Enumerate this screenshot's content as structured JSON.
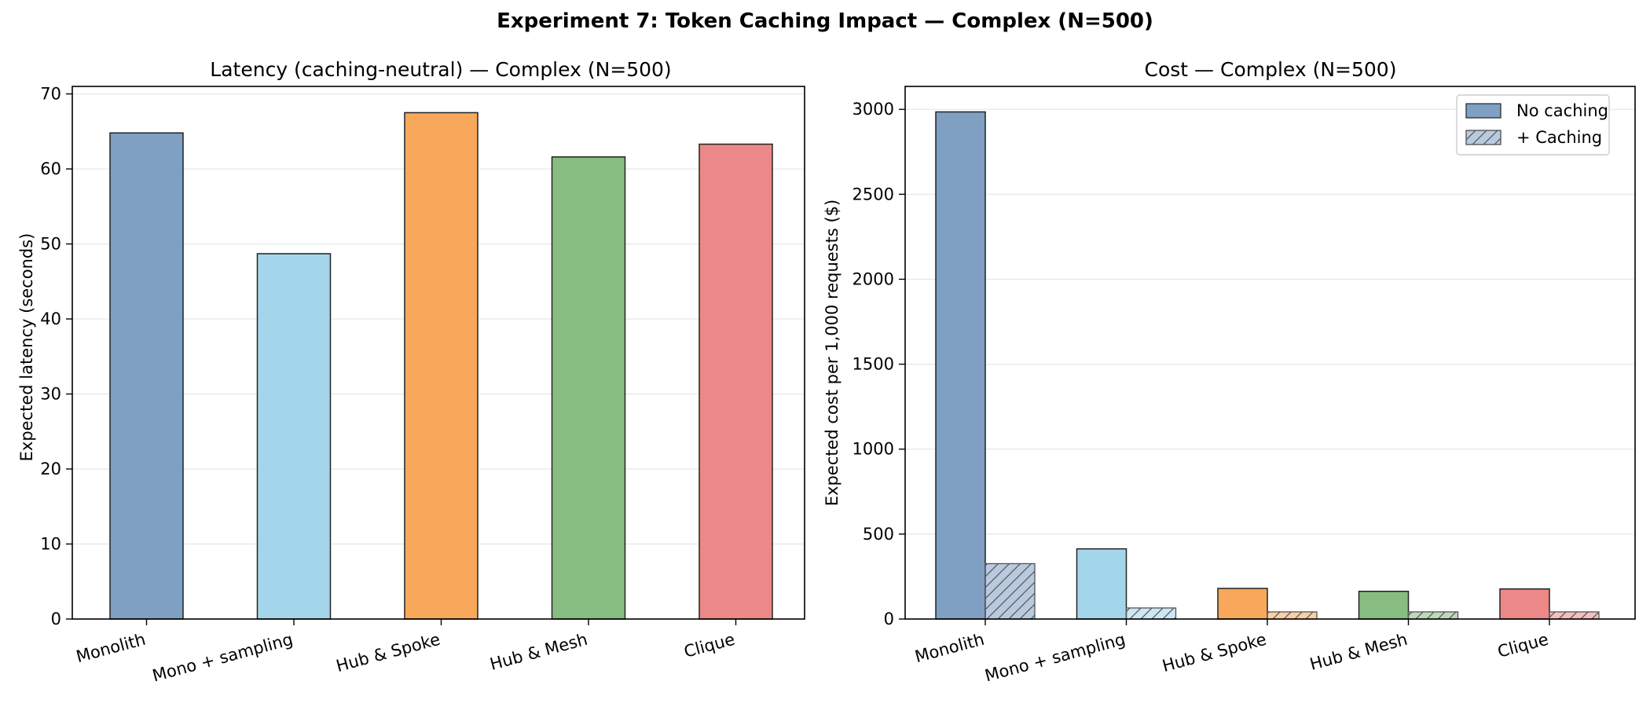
{
  "figure": {
    "suptitle": "Experiment 7: Token Caching Impact — Complex (N=500)"
  },
  "chart_data": [
    {
      "type": "bar",
      "title": "Latency (caching-neutral) — Complex (N=500)",
      "xlabel": "",
      "ylabel": "Expected latency (seconds)",
      "categories": [
        "Monolith",
        "Mono + sampling",
        "Hub & Spoke",
        "Hub & Mesh",
        "Clique"
      ],
      "values": [
        64.8,
        48.7,
        67.5,
        61.6,
        63.3
      ],
      "colors": [
        "#7f9fc3",
        "#a3d6ea",
        "#f7a85a",
        "#87bd80",
        "#ec8888"
      ],
      "ylim": [
        0,
        71
      ],
      "yticks": [
        0,
        10,
        20,
        30,
        40,
        50,
        60,
        70
      ],
      "grid": "y",
      "legend": "none"
    },
    {
      "type": "bar",
      "title": "Cost — Complex (N=500)",
      "xlabel": "",
      "ylabel": "Expected cost per 1,000 requests ($)",
      "categories": [
        "Monolith",
        "Mono + sampling",
        "Hub & Spoke",
        "Hub & Mesh",
        "Clique"
      ],
      "series": [
        {
          "name": "No caching",
          "values": [
            2985,
            413,
            180,
            163,
            177
          ],
          "hatch": false
        },
        {
          "name": "+ Caching",
          "values": [
            326,
            65,
            42,
            42,
            42
          ],
          "hatch": true
        }
      ],
      "colors": [
        "#7f9fc3",
        "#a3d6ea",
        "#f7a85a",
        "#87bd80",
        "#ec8888"
      ],
      "ylim": [
        0,
        3135
      ],
      "yticks": [
        0,
        500,
        1000,
        1500,
        2000,
        2500,
        3000
      ],
      "grid": "y",
      "legend": "top-right"
    }
  ]
}
